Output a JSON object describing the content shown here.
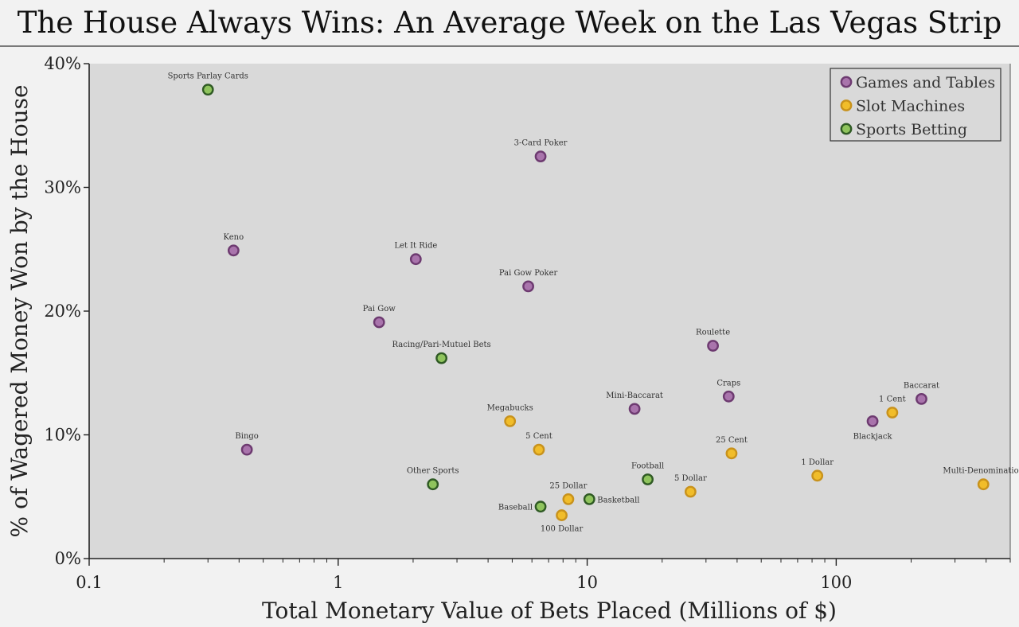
{
  "chart_data": {
    "type": "scatter",
    "title": "The House Always Wins: An Average Week on the Las Vegas Strip",
    "xlabel": "Total Monetary Value of Bets Placed (Millions of $)",
    "ylabel": "% of Wagered Money Won by the House",
    "x_scale": "log",
    "xlim": [
      0.1,
      500
    ],
    "ylim": [
      0,
      40
    ],
    "x_ticks": [
      0.1,
      1,
      10,
      100
    ],
    "x_tick_labels": [
      "0.1",
      "1",
      "10",
      "100"
    ],
    "y_ticks": [
      0,
      10,
      20,
      30,
      40
    ],
    "y_tick_labels": [
      "0%",
      "10%",
      "20%",
      "30%",
      "40%"
    ],
    "grid": false,
    "legend_position": "top-right",
    "series": [
      {
        "name": "Games and Tables",
        "color": "#a974ac",
        "points": [
          {
            "label": "3-Card Poker",
            "x": 6.5,
            "y": 32.5
          },
          {
            "label": "Keno",
            "x": 0.38,
            "y": 24.9
          },
          {
            "label": "Let It Ride",
            "x": 2.05,
            "y": 24.2
          },
          {
            "label": "Pai Gow Poker",
            "x": 5.8,
            "y": 22.0
          },
          {
            "label": "Pai Gow",
            "x": 1.46,
            "y": 19.1
          },
          {
            "label": "Roulette",
            "x": 32,
            "y": 17.2
          },
          {
            "label": "Craps",
            "x": 37,
            "y": 13.1
          },
          {
            "label": "Mini-Baccarat",
            "x": 15.5,
            "y": 12.1
          },
          {
            "label": "Baccarat",
            "x": 220,
            "y": 12.9
          },
          {
            "label": "Blackjack",
            "x": 140,
            "y": 11.1
          },
          {
            "label": "Bingo",
            "x": 0.43,
            "y": 8.8
          }
        ]
      },
      {
        "name": "Slot Machines",
        "color": "#f1bd2a",
        "points": [
          {
            "label": "Megabucks",
            "x": 4.9,
            "y": 11.1
          },
          {
            "label": "1 Cent",
            "x": 168,
            "y": 11.8
          },
          {
            "label": "5 Cent",
            "x": 6.4,
            "y": 8.8
          },
          {
            "label": "25 Cent",
            "x": 38,
            "y": 8.5
          },
          {
            "label": "1 Dollar",
            "x": 84,
            "y": 6.7
          },
          {
            "label": "Multi-Denomination",
            "x": 390,
            "y": 6.0
          },
          {
            "label": "5 Dollar",
            "x": 26,
            "y": 5.4
          },
          {
            "label": "25 Dollar",
            "x": 8.4,
            "y": 4.8
          },
          {
            "label": "100 Dollar",
            "x": 7.9,
            "y": 3.5
          }
        ]
      },
      {
        "name": "Sports Betting",
        "color": "#8fc45d",
        "points": [
          {
            "label": "Sports Parlay Cards",
            "x": 0.3,
            "y": 37.9
          },
          {
            "label": "Racing/Pari-Mutuel Bets",
            "x": 2.6,
            "y": 16.2
          },
          {
            "label": "Football",
            "x": 17.5,
            "y": 6.4
          },
          {
            "label": "Other Sports",
            "x": 2.4,
            "y": 6.0
          },
          {
            "label": "Basketball",
            "x": 10.2,
            "y": 4.8
          },
          {
            "label": "Baseball",
            "x": 6.5,
            "y": 4.2
          }
        ]
      }
    ]
  },
  "style": {
    "plot_bg": "#d9d9d9",
    "page_bg": "#f2f2f2",
    "text_color": "#222222",
    "games_stroke": "#6d3a70",
    "slots_stroke": "#c8921c",
    "sports_stroke": "#2f5a24"
  }
}
